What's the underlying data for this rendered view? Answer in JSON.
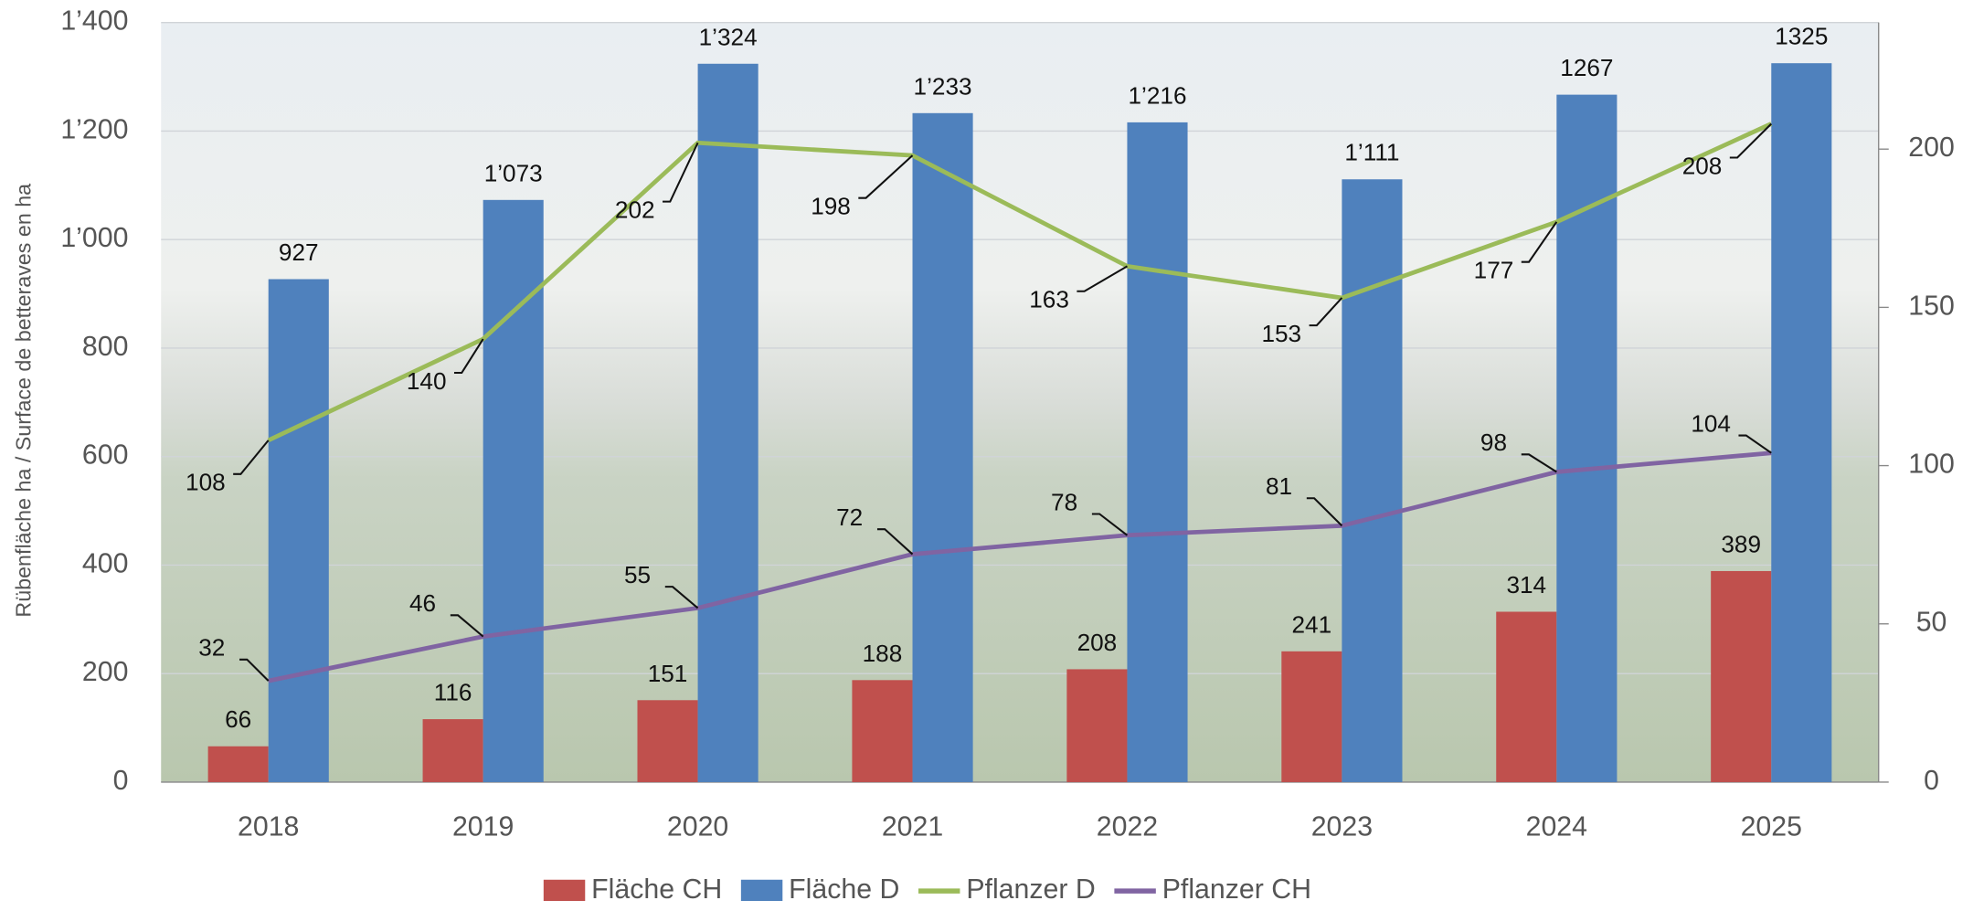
{
  "chart_data": {
    "type": "bar-line",
    "y_axis_label": "Rübenfläche ha / Surface de betteraves en ha",
    "categories": [
      "2018",
      "2019",
      "2020",
      "2021",
      "2022",
      "2023",
      "2024",
      "2025"
    ],
    "series": [
      {
        "name": "Fläche CH",
        "type": "bar",
        "color": "#c0504d",
        "values": [
          66,
          116,
          151,
          188,
          208,
          241,
          314,
          389
        ]
      },
      {
        "name": "Fläche D",
        "type": "bar",
        "color": "#4f81bd",
        "values": [
          927,
          1073,
          1324,
          1233,
          1216,
          1111,
          1267,
          1325
        ],
        "value_labels": [
          "927",
          "1’073",
          "1’324",
          "1’233",
          "1’216",
          "1’111",
          "1267",
          "1325"
        ]
      },
      {
        "name": "Pflanzer D",
        "type": "line",
        "axis": "y2",
        "color": "#9bbb59",
        "values": [
          108,
          140,
          202,
          198,
          163,
          153,
          177,
          208
        ]
      },
      {
        "name": "Pflanzer CH",
        "type": "line",
        "axis": "y2",
        "color": "#8064a2",
        "values": [
          32,
          46,
          55,
          72,
          78,
          81,
          98,
          104
        ]
      }
    ],
    "ylim": [
      0,
      1400
    ],
    "yticks": [
      0,
      200,
      400,
      600,
      800,
      {
        "value": 1000,
        "label": "1’000"
      },
      {
        "value": 1200,
        "label": "1’200"
      },
      {
        "value": 1400,
        "label": "1’400"
      }
    ],
    "y2lim": [
      0,
      240
    ],
    "y2ticks": [
      0,
      50,
      100,
      150,
      200
    ],
    "grid": true,
    "legend": "bottom"
  }
}
